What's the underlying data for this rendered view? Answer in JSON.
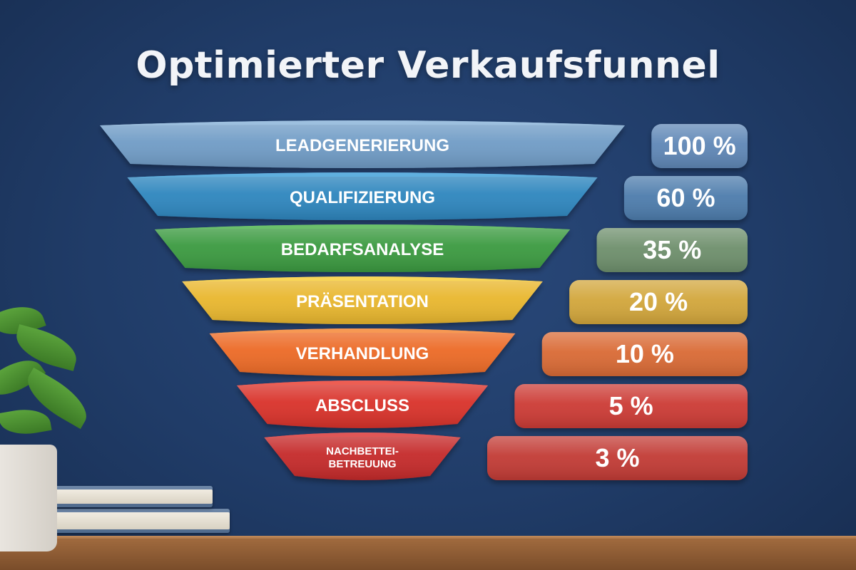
{
  "title": "Optimierter Verkaufsfunnel",
  "colors": {
    "stage_fills": [
      "#6f9cc6",
      "#2e86be",
      "#3b9a40",
      "#e9b72e",
      "#ec6b25",
      "#d9302c",
      "#c52a2a"
    ],
    "stage_tops": [
      "#9ec1e0",
      "#5fb0e0",
      "#6cc06a",
      "#f8d758",
      "#f79a52",
      "#ee5d52",
      "#e05656"
    ],
    "pill_fills": [
      "#5f87b6",
      "#4e7bac",
      "#6e8f6c",
      "#d2a63a",
      "#d96a35",
      "#cc3b35",
      "#c23a36"
    ],
    "text": "#ffffff"
  },
  "chart_data": {
    "type": "bar",
    "title": "Optimierter Verkaufsfunnel",
    "categories": [
      "LEADGENERIERUNG",
      "QUALIFIZIERUNG",
      "BEDARFSANALYSE",
      "PRÄSENTATION",
      "VERHANDLUNG",
      "ABSCLUSS",
      "NACHBETTEI-BETREUUNG"
    ],
    "category_lines": [
      [
        "LEADGENERIERUNG"
      ],
      [
        "QUALIFIZIERUNG"
      ],
      [
        "BEDARFSANALYSE"
      ],
      [
        "PRÄSENTATION"
      ],
      [
        "VERHANDLUNG"
      ],
      [
        "ABSCLUSS"
      ],
      [
        "NACHBETTEI-",
        "BETREUUNG"
      ]
    ],
    "values": [
      100,
      60,
      35,
      20,
      10,
      5,
      3
    ],
    "value_labels": [
      "100 %",
      "60 %",
      "35 %",
      "20 %",
      "10 %",
      "5 %",
      "3 %"
    ],
    "ylim": [
      0,
      100
    ]
  }
}
